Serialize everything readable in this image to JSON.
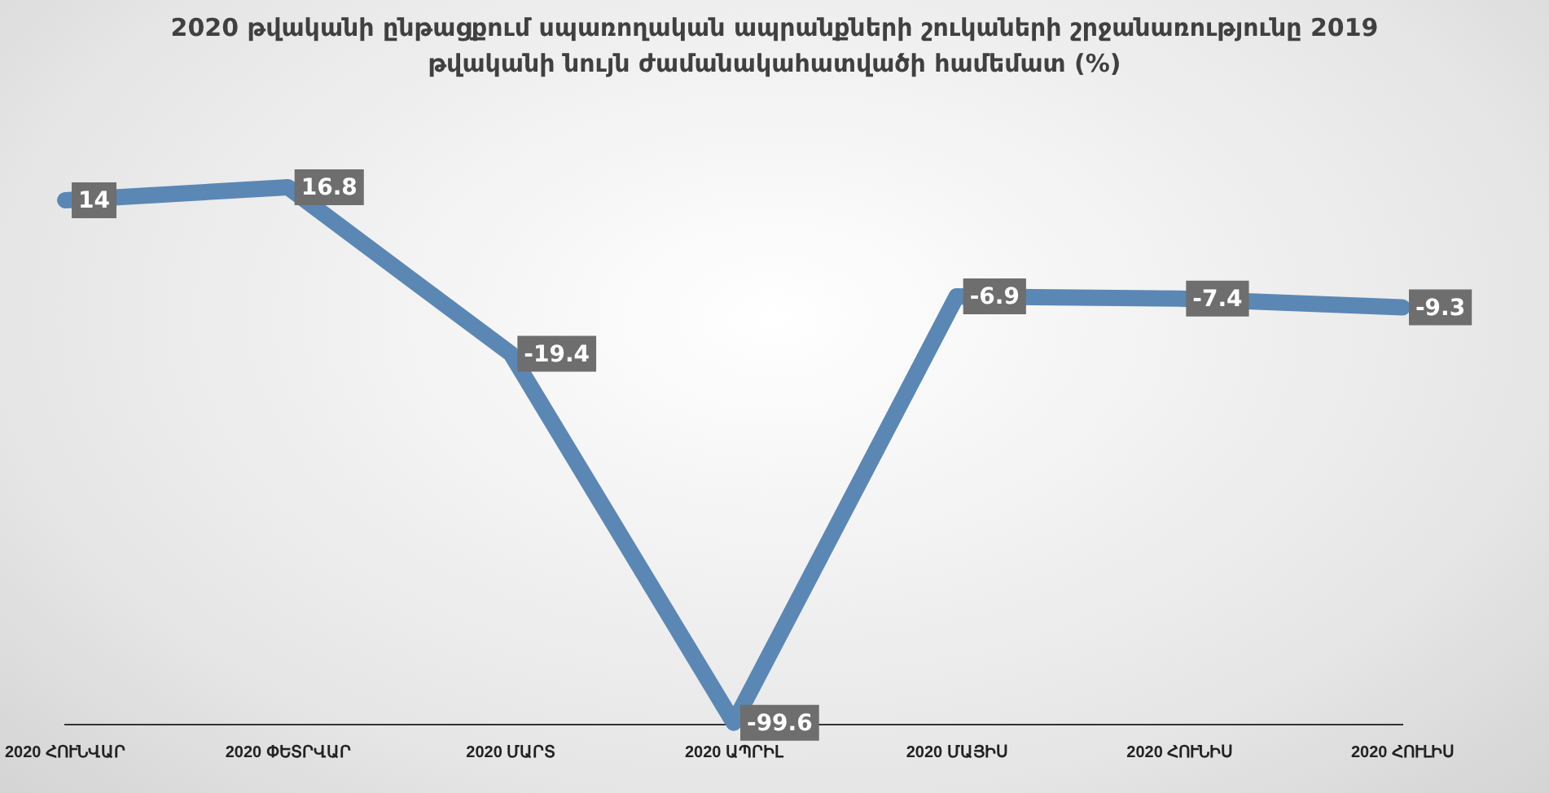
{
  "chart_data": {
    "type": "line",
    "title": "2020 թվականի ընթացքում սպառողական ապրանքների շուկաների շրջանառությունը 2019 թվականի նույն ժամանակահատվածի համեմատ (%)",
    "categories": [
      "2020 ՀՈՒՆՎԱՐ",
      "2020 ՓԵՏՐՎԱՐ",
      "2020 ՄԱՐՏ",
      "2020 ԱՊՐԻԼ",
      "2020 ՄԱՅԻՍ",
      "2020 ՀՈՒՆԻՍ",
      "2020 ՀՈՒԼԻՍ"
    ],
    "series": [
      {
        "color": "#5b87b5",
        "values": [
          14,
          16.8,
          -19.4,
          -99.6,
          -6.9,
          -7.4,
          -9.3
        ]
      }
    ],
    "data_labels": true,
    "grid": false,
    "legend": false,
    "marker": "none",
    "line_style": "solid"
  }
}
